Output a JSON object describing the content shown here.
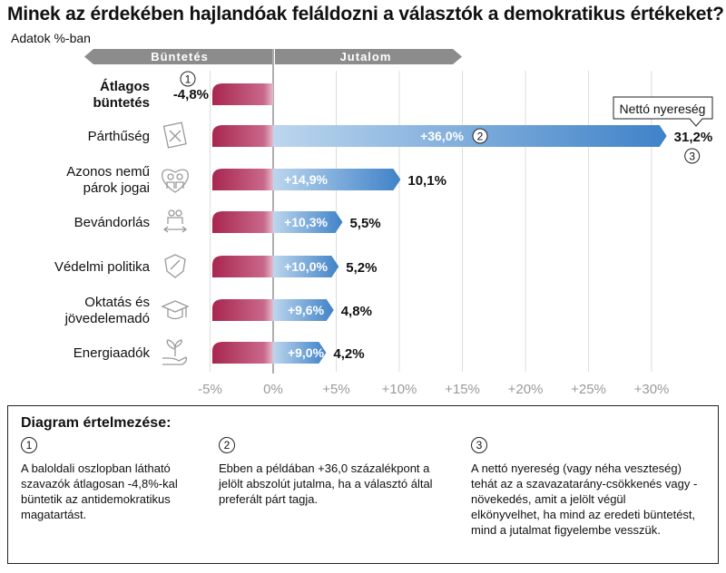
{
  "title": "Minek az érdekében hajlandóak feláldozni a választók a demokratikus értékeket?",
  "subtitle": "Adatok %-ban",
  "colors": {
    "penalty": "#a8264f",
    "reward": "#3f82c8",
    "grid": "#dddddd",
    "header": "#8c8c8c"
  },
  "chart_data": {
    "type": "bar",
    "header_penalty": "Büntetés",
    "header_reward": "Jutalom",
    "xlim": [
      -5,
      31
    ],
    "ticks": [
      "-5%",
      "0%",
      "+5%",
      "+10%",
      "+15%",
      "+20%",
      "+25%",
      "+30%"
    ],
    "tick_values": [
      -5,
      0,
      5,
      10,
      15,
      20,
      25,
      30
    ],
    "penalty": {
      "label_line1": "Átlagos",
      "label_line2": "büntetés",
      "value": -4.8,
      "value_label": "-4,8%",
      "marker": "1"
    },
    "categories": [
      {
        "label_line1": "Párthűség",
        "label_line2": "",
        "reward": 36.0,
        "reward_label": "+36,0%",
        "net": 31.2,
        "net_label": "31,2%",
        "icon": "ballot-icon"
      },
      {
        "label_line1": "Azonos nemű",
        "label_line2": "párok jogai",
        "reward": 14.9,
        "reward_label": "+14,9%",
        "net": 10.1,
        "net_label": "10,1%",
        "icon": "couple-heart-icon"
      },
      {
        "label_line1": "Bevándorlás",
        "label_line2": "",
        "reward": 10.3,
        "reward_label": "+10,3%",
        "net": 5.5,
        "net_label": "5,5%",
        "icon": "migration-icon"
      },
      {
        "label_line1": "Védelmi politika",
        "label_line2": "",
        "reward": 10.0,
        "reward_label": "+10,0%",
        "net": 5.2,
        "net_label": "5,2%",
        "icon": "shield-icon"
      },
      {
        "label_line1": "Oktatás és",
        "label_line2": "jövedelemadó",
        "reward": 9.6,
        "reward_label": "+9,6%",
        "net": 4.8,
        "net_label": "4,8%",
        "icon": "graduation-cap-icon"
      },
      {
        "label_line1": "Energiaadók",
        "label_line2": "",
        "reward": 9.0,
        "reward_label": "+9,0%",
        "net": 4.2,
        "net_label": "4,2%",
        "icon": "plant-hand-icon"
      }
    ],
    "callout": "Nettó nyereség",
    "reward_marker": "2",
    "net_marker": "3"
  },
  "legend": {
    "title": "Diagram értelmezése:",
    "items": [
      {
        "num": "1",
        "text": "A baloldali oszlopban látható szavazók átlagosan -4,8%-kal büntetik az antidemokratikus magatartást."
      },
      {
        "num": "2",
        "text": "Ebben a példában +36,0 százalékpont a jelölt abszolút jutalma, ha a választó által preferált párt tagja."
      },
      {
        "num": "3",
        "text": "A nettó nyereség (vagy néha veszteség) tehát az a szavazatarány-csökkenés vagy -növekedés, amit a jelölt végül elkönyvelhet, ha mind az eredeti büntetést, mind a jutalmat figyelembe vesszük."
      }
    ]
  }
}
